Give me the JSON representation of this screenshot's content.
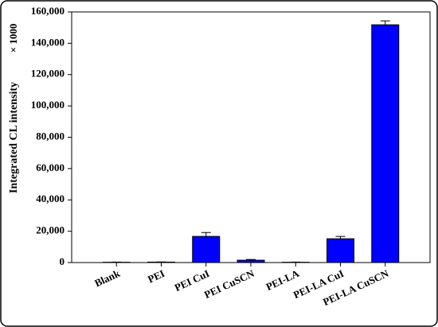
{
  "chart_data": {
    "type": "bar",
    "ylabel": "Integrated CL intensity",
    "annotation": "× 1000",
    "categories": [
      "Blank",
      "PEI",
      "PEI CuI",
      "PEI CuSCN",
      "PEI-LA",
      "PEI-LA CuI",
      "PEI-LA CuSCN"
    ],
    "values": [
      200,
      300,
      16700,
      1500,
      200,
      15200,
      151800
    ],
    "errors": [
      100,
      100,
      2500,
      500,
      100,
      1500,
      2500
    ],
    "color": "#0000ff",
    "ylim": [
      0,
      160000
    ],
    "yticks": [
      0,
      {
        "value": 20000,
        "label": "20,000"
      },
      {
        "value": 40000,
        "label": "40,000"
      },
      {
        "value": 60000,
        "label": "60,000"
      },
      {
        "value": 80000,
        "label": "80,000"
      },
      {
        "value": 100000,
        "label": "100,000"
      },
      {
        "value": 120000,
        "label": "120,000"
      },
      {
        "value": 140000,
        "label": "140,000"
      },
      {
        "value": 160000,
        "label": "160,000"
      }
    ],
    "grid": false
  }
}
